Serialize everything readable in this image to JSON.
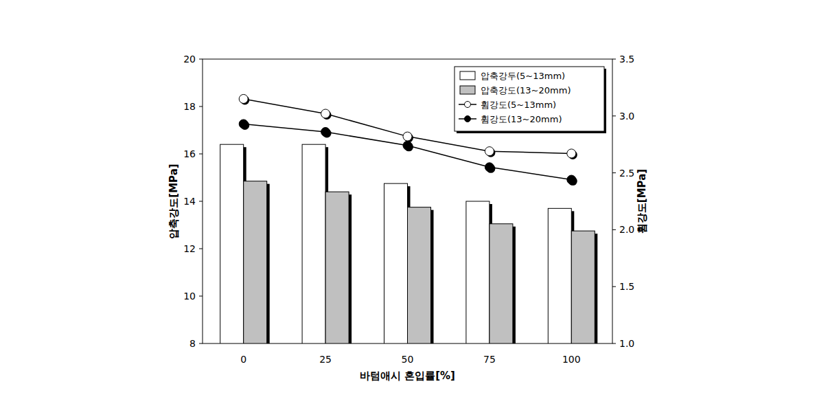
{
  "chart_data": {
    "type": "bar",
    "x_label": "바텀애시 혼입률[%]",
    "y_label": "압축강도[MPa]",
    "y2_label": "휨강도[MPa]",
    "categories": [
      "0",
      "25",
      "50",
      "75",
      "100"
    ],
    "ylim": [
      8,
      20
    ],
    "yticks": [
      8,
      10,
      12,
      14,
      16,
      18,
      20
    ],
    "y2lim": [
      1,
      3.5
    ],
    "y2ticks": [
      {
        "value": 1,
        "label": "1.0"
      },
      1.5,
      {
        "value": 2,
        "label": "2.0"
      },
      2.5,
      {
        "value": 3,
        "label": "3.0"
      },
      3.5
    ],
    "legend": "upper right",
    "grid": false,
    "series": [
      {
        "name": "압축강두(5~13mm)",
        "type": "bar",
        "color": "#ffffff",
        "values": [
          16.4,
          16.4,
          14.75,
          14.0,
          13.7
        ]
      },
      {
        "name": "압축강도(13~20mm)",
        "type": "bar",
        "color": "#c0c0c0",
        "values": [
          14.85,
          14.4,
          13.75,
          13.05,
          12.75
        ]
      },
      {
        "name": "휨강도(5~13mm)",
        "type": "line",
        "axis": "y2",
        "color": "#000000",
        "marker": "circle-open",
        "values": [
          3.15,
          3.02,
          2.82,
          2.69,
          2.67
        ]
      },
      {
        "name": "휨강도(13~20mm)",
        "type": "line",
        "axis": "y2",
        "color": "#000000",
        "marker": "circle",
        "values": [
          2.93,
          2.86,
          2.74,
          2.55,
          2.44
        ]
      }
    ]
  }
}
